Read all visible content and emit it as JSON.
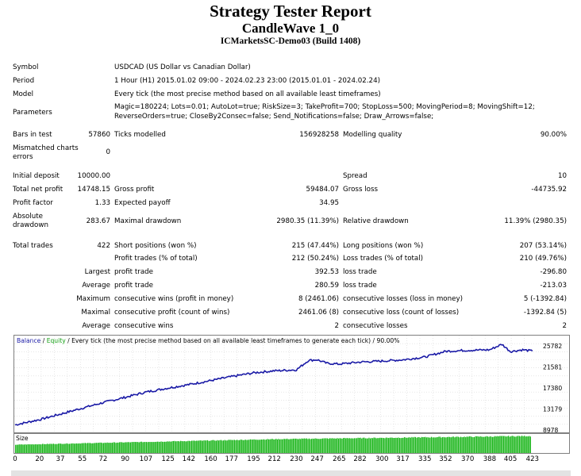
{
  "report": {
    "title": "Strategy Tester Report",
    "subtitle": "CandleWave 1_0",
    "account": "ICMarketsSC-Demo03 (Build 1408)"
  },
  "info": {
    "symbol_label": "Symbol",
    "symbol": "USDCAD (US Dollar vs Canadian Dollar)",
    "period_label": "Period",
    "period": "1 Hour (H1) 2015.01.02 09:00 - 2024.02.23 23:00 (2015.01.01 - 2024.02.24)",
    "model_label": "Model",
    "model": "Every tick (the most precise method based on all available least timeframes)",
    "parameters_label": "Parameters",
    "parameters_line1": "Magic=180224; Lots=0.01; AutoLot=true; RiskSize=3; TakeProfit=700; StopLoss=500; MovingPeriod=8; MovingShift=12;",
    "parameters_line2": "ReverseOrders=true; CloseBy2Consec=false; Send_Notifications=false; Draw_Arrows=false;"
  },
  "stats": {
    "bars_label": "Bars in test",
    "bars": "57860",
    "ticks_label": "Ticks modelled",
    "ticks": "156928258",
    "quality_label": "Modelling quality",
    "quality": "90.00%",
    "mismatch_label1": "Mismatched charts",
    "mismatch_label2": "errors",
    "mismatch": "0",
    "deposit_label": "Initial deposit",
    "deposit": "10000.00",
    "spread_label": "Spread",
    "spread": "10",
    "net_label": "Total net profit",
    "net": "14748.15",
    "gross_profit_label": "Gross profit",
    "gross_profit": "59484.07",
    "gross_loss_label": "Gross loss",
    "gross_loss": "-44735.92",
    "pf_label": "Profit factor",
    "pf": "1.33",
    "payoff_label": "Expected payoff",
    "payoff": "34.95",
    "abs_dd_label1": "Absolute",
    "abs_dd_label2": "drawdown",
    "abs_dd": "283.67",
    "max_dd_label": "Maximal drawdown",
    "max_dd": "2980.35 (11.39%)",
    "rel_dd_label": "Relative drawdown",
    "rel_dd": "11.39% (2980.35)",
    "trades_label": "Total trades",
    "trades": "422",
    "short_label": "Short positions (won %)",
    "short": "215 (47.44%)",
    "long_label": "Long positions (won %)",
    "long": "207 (53.14%)",
    "ptrades_label": "Profit trades (% of total)",
    "ptrades": "212 (50.24%)",
    "ltrades_label": "Loss trades (% of total)",
    "ltrades": "210 (49.76%)",
    "largest_label": "Largest",
    "lp_label": "profit trade",
    "lp": "392.53",
    "ll_label": "loss trade",
    "ll": "-296.80",
    "average_label": "Average",
    "ap_label": "profit trade",
    "ap": "280.59",
    "al_label": "loss trade",
    "al": "-213.03",
    "maximum_label": "Maximum",
    "mcw_label": "consecutive wins (profit in money)",
    "mcw": "8 (2461.06)",
    "mcl_label": "consecutive losses (loss in money)",
    "mcl": "5 (-1392.84)",
    "maximal_label": "Maximal",
    "mcp_label": "consecutive profit (count of wins)",
    "mcp": "2461.06 (8)",
    "mcl2_label": "consecutive loss (count of losses)",
    "mcl2": "-1392.84 (5)",
    "average2_label": "Average",
    "acw_label": "consecutive wins",
    "acw": "2",
    "acl_label": "consecutive losses",
    "acl": "2"
  },
  "chart_legend": {
    "balance": "Balance",
    "slash1": " / ",
    "equity": "Equity",
    "rest": " / Every tick (the most precise method based on all available least timeframes to generate each tick) / 90.00%"
  },
  "size_label": "Size",
  "colors": {
    "balance": "#1a1aa6",
    "equity": "#14a014",
    "size_bar": "#22b822",
    "chart_border": "#808080"
  },
  "chart_data": {
    "type": "line",
    "series": [
      {
        "name": "Balance",
        "x": [
          0,
          20,
          37,
          55,
          72,
          90,
          107,
          125,
          142,
          160,
          177,
          195,
          212,
          230,
          240,
          247,
          255,
          265,
          282,
          300,
          317,
          335,
          352,
          370,
          388,
          398,
          405,
          415,
          423
        ],
        "values": [
          10000,
          11050,
          12150,
          13350,
          14450,
          15500,
          16550,
          17350,
          18050,
          18850,
          19650,
          20400,
          20800,
          21000,
          22900,
          23000,
          22300,
          22150,
          22550,
          22750,
          23000,
          23550,
          24700,
          24900,
          25000,
          26100,
          24650,
          25000,
          24750
        ]
      }
    ],
    "x_ticks": [
      "0",
      "20",
      "37",
      "55",
      "72",
      "90",
      "107",
      "125",
      "142",
      "160",
      "177",
      "195",
      "212",
      "230",
      "247",
      "265",
      "282",
      "300",
      "317",
      "335",
      "352",
      "370",
      "388",
      "405",
      "423"
    ],
    "y_ticks": [
      "25782",
      "21581",
      "17380",
      "13179",
      "8978"
    ],
    "y_range": [
      8978,
      25782
    ],
    "x_range": [
      0,
      427
    ],
    "grid": true,
    "size_bars": {
      "count": 422,
      "start_fraction": 0.45,
      "mid_fraction": 0.75,
      "end_fraction": 0.92
    }
  }
}
